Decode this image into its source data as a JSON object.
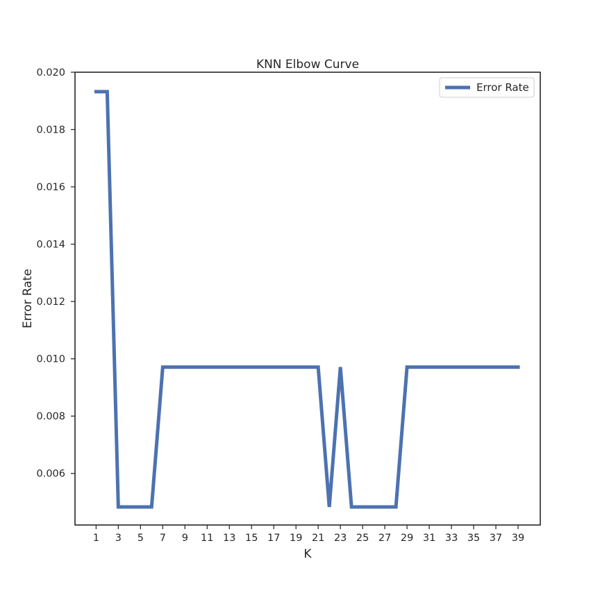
{
  "chart_data": {
    "type": "line",
    "title": "KNN Elbow Curve",
    "xlabel": "K",
    "ylabel": "Error Rate",
    "x": [
      1,
      2,
      3,
      4,
      5,
      6,
      7,
      8,
      9,
      10,
      11,
      12,
      13,
      14,
      15,
      16,
      17,
      18,
      19,
      20,
      21,
      22,
      23,
      24,
      25,
      26,
      27,
      28,
      29,
      30,
      31,
      32,
      33,
      34,
      35,
      36,
      37,
      38,
      39
    ],
    "series": [
      {
        "name": "Error Rate",
        "color": "#4c72b0",
        "values": [
          0.01932,
          0.01932,
          0.00483,
          0.00483,
          0.00483,
          0.00483,
          0.00971,
          0.00971,
          0.00971,
          0.00971,
          0.00971,
          0.00971,
          0.00971,
          0.00971,
          0.00971,
          0.00971,
          0.00971,
          0.00971,
          0.00971,
          0.00971,
          0.00971,
          0.00483,
          0.00971,
          0.00483,
          0.00483,
          0.00483,
          0.00483,
          0.00483,
          0.00971,
          0.00971,
          0.00971,
          0.00971,
          0.00971,
          0.00971,
          0.00971,
          0.00971,
          0.00971,
          0.00971,
          0.00971
        ]
      }
    ],
    "xticks": [
      "1",
      "3",
      "5",
      "7",
      "9",
      "11",
      "13",
      "15",
      "17",
      "19",
      "21",
      "23",
      "25",
      "27",
      "29",
      "31",
      "33",
      "35",
      "37",
      "39"
    ],
    "yticks": [
      "0.006",
      "0.008",
      "0.010",
      "0.012",
      "0.014",
      "0.016",
      "0.018",
      "0.020"
    ],
    "xlim": [
      -0.9,
      41.0
    ],
    "ylim": [
      0.0042,
      0.02
    ],
    "grid": false,
    "legend": "top-right"
  }
}
